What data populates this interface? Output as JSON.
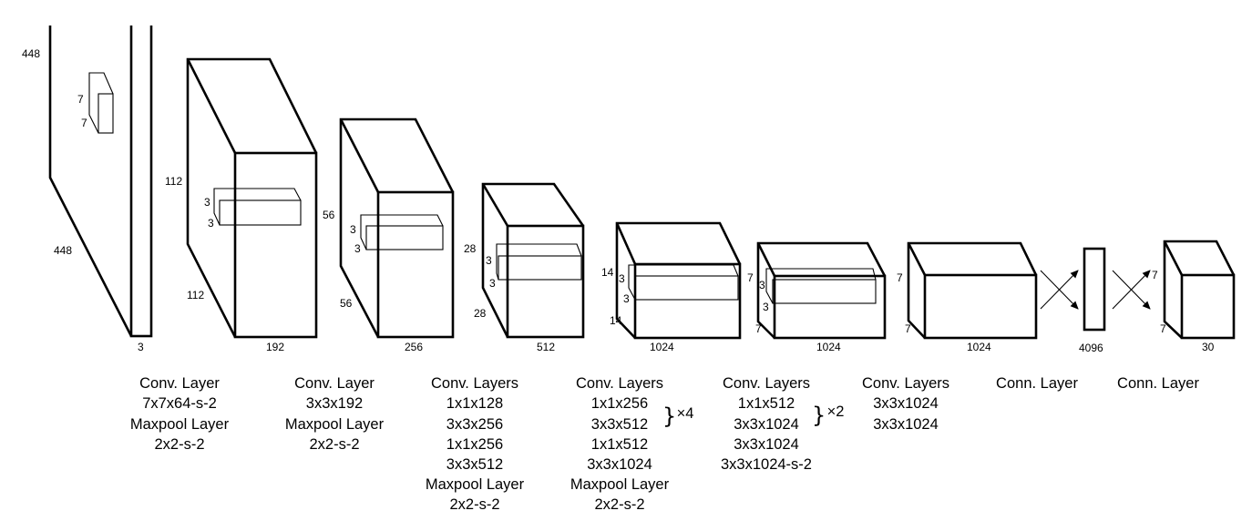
{
  "dims": {
    "l0": {
      "h": "448",
      "w": "448",
      "k1": "7",
      "k2": "7",
      "d": "3"
    },
    "l1": {
      "h": "112",
      "w": "112",
      "k1": "3",
      "k2": "3",
      "d": "192"
    },
    "l2": {
      "h": "56",
      "w": "56",
      "k1": "3",
      "k2": "3",
      "d": "256"
    },
    "l3": {
      "h": "28",
      "w": "28",
      "k1": "3",
      "k2": "3",
      "d": "512"
    },
    "l4": {
      "h": "14",
      "w": "14",
      "k1": "3",
      "k2": "3",
      "d": "1024"
    },
    "l5": {
      "h": "7",
      "w": "7",
      "k1": "3",
      "k2": "3",
      "d": "1024"
    },
    "l6": {
      "h": "7",
      "w": "7",
      "d": "1024"
    },
    "fc": {
      "d": "4096"
    },
    "out": {
      "h": "7",
      "w": "7",
      "d": "30"
    }
  },
  "captions": [
    [
      "Conv. Layer",
      "7x7x64-s-2",
      "Maxpool Layer",
      "2x2-s-2"
    ],
    [
      "Conv. Layer",
      "3x3x192",
      "Maxpool Layer",
      "2x2-s-2"
    ],
    [
      "Conv. Layers",
      "1x1x128",
      "3x3x256",
      "1x1x256",
      "3x3x512",
      "Maxpool Layer",
      "2x2-s-2"
    ],
    [
      "Conv. Layers",
      "1x1x256",
      "3x3x512",
      "1x1x512",
      "3x3x1024",
      "Maxpool Layer",
      "2x2-s-2"
    ],
    [
      "Conv. Layers",
      "1x1x512",
      "3x3x1024",
      "3x3x1024",
      "3x3x1024-s-2"
    ],
    [
      "Conv. Layers",
      "3x3x1024",
      "3x3x1024"
    ],
    [
      "Conn. Layer"
    ],
    [
      "Conn. Layer"
    ]
  ],
  "repeats": {
    "block4": "×4",
    "block5": "×2"
  }
}
